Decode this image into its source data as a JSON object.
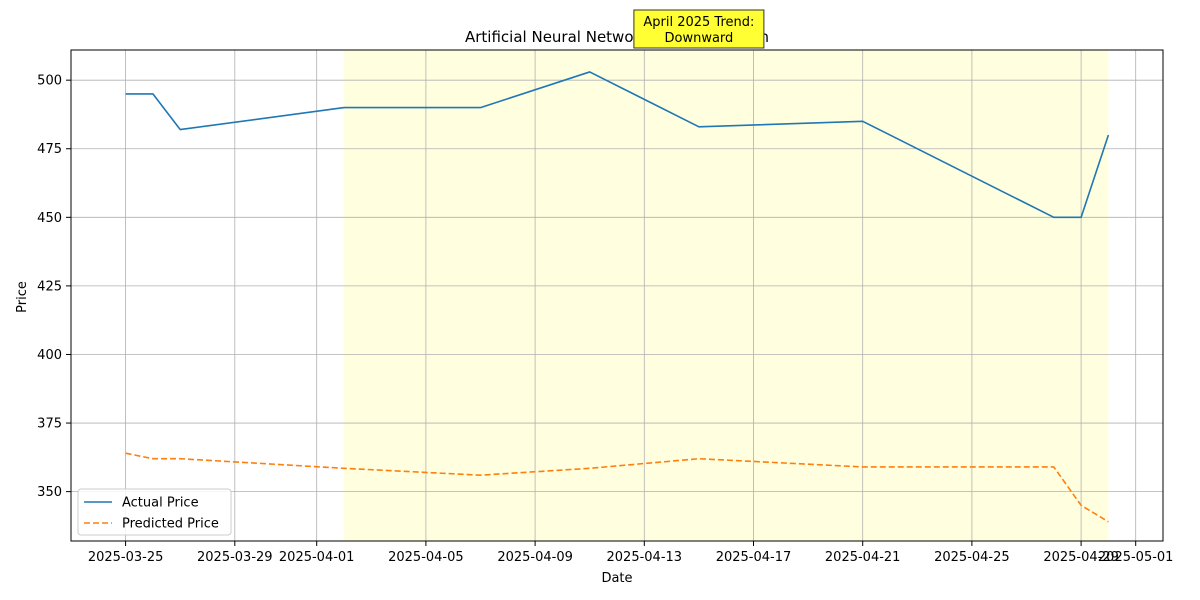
{
  "chart_data": {
    "type": "line",
    "title": "Artificial Neural Network Price Prediction",
    "xlabel": "Date",
    "ylabel": "Price",
    "x_type": "date",
    "xlim": [
      "2025-03-23",
      "2025-05-02"
    ],
    "ylim": [
      332,
      511
    ],
    "x_ticks": [
      "2025-03-25",
      "2025-03-29",
      "2025-04-01",
      "2025-04-05",
      "2025-04-09",
      "2025-04-13",
      "2025-04-17",
      "2025-04-21",
      "2025-04-25",
      "2025-04-29",
      "2025-05-01"
    ],
    "y_ticks": [
      350,
      375,
      400,
      425,
      450,
      475,
      500
    ],
    "grid": true,
    "legend_position": "lower-left",
    "shaded_range": {
      "from": "2025-04-02",
      "to": "2025-04-30",
      "color": "#ffffe0"
    },
    "annotation": {
      "lines": [
        "April 2025 Trend:",
        "Downward"
      ],
      "date": "2025-04-15",
      "background": "#ffff33",
      "border": "#333333"
    },
    "series": [
      {
        "name": "Actual Price",
        "color": "#1f77b4",
        "style": "solid",
        "points": [
          [
            "2025-03-25",
            495
          ],
          [
            "2025-03-26",
            495
          ],
          [
            "2025-03-27",
            482
          ],
          [
            "2025-04-02",
            490
          ],
          [
            "2025-04-07",
            490
          ],
          [
            "2025-04-11",
            503
          ],
          [
            "2025-04-15",
            483
          ],
          [
            "2025-04-21",
            485
          ],
          [
            "2025-04-28",
            450
          ],
          [
            "2025-04-29",
            450
          ],
          [
            "2025-04-30",
            480
          ]
        ]
      },
      {
        "name": "Predicted Price",
        "color": "#ff7f0e",
        "style": "dashed",
        "points": [
          [
            "2025-03-25",
            364
          ],
          [
            "2025-03-26",
            362
          ],
          [
            "2025-03-27",
            362
          ],
          [
            "2025-04-02",
            358.5
          ],
          [
            "2025-04-07",
            356
          ],
          [
            "2025-04-11",
            358.5
          ],
          [
            "2025-04-15",
            362
          ],
          [
            "2025-04-21",
            359
          ],
          [
            "2025-04-28",
            359
          ],
          [
            "2025-04-29",
            345
          ],
          [
            "2025-04-30",
            339
          ]
        ]
      }
    ]
  }
}
